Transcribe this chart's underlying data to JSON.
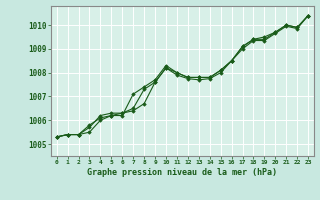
{
  "background_color": "#c8e8e0",
  "plot_bg_color": "#d8f0e8",
  "grid_color": "#ffffff",
  "line_color": "#1a5c1a",
  "ylim": [
    1004.5,
    1010.8
  ],
  "xlim": [
    -0.5,
    23.5
  ],
  "yticks": [
    1005,
    1006,
    1007,
    1008,
    1009,
    1010
  ],
  "xticks": [
    0,
    1,
    2,
    3,
    4,
    5,
    6,
    7,
    8,
    9,
    10,
    11,
    12,
    13,
    14,
    15,
    16,
    17,
    18,
    19,
    20,
    21,
    22,
    23
  ],
  "xlabel": "Graphe pression niveau de la mer (hPa)",
  "series1": [
    1005.3,
    1005.4,
    1005.4,
    1005.8,
    1006.1,
    1006.2,
    1006.2,
    1007.1,
    1007.4,
    1007.7,
    1008.3,
    1008.0,
    1007.8,
    1007.8,
    1007.8,
    1008.1,
    1008.5,
    1009.1,
    1009.4,
    1009.4,
    1009.7,
    1010.0,
    1009.9,
    1010.4
  ],
  "series2": [
    1005.3,
    1005.4,
    1005.4,
    1005.5,
    1006.0,
    1006.2,
    1006.3,
    1006.4,
    1006.7,
    1007.6,
    1008.2,
    1007.9,
    1007.75,
    1007.7,
    1007.75,
    1008.0,
    1008.5,
    1009.0,
    1009.35,
    1009.35,
    1009.65,
    1009.95,
    1009.85,
    1010.4
  ],
  "series3": [
    1005.3,
    1005.4,
    1005.4,
    1005.7,
    1006.2,
    1006.3,
    1006.3,
    1006.5,
    1007.3,
    1007.6,
    1008.2,
    1008.0,
    1007.8,
    1007.8,
    1007.8,
    1008.1,
    1008.5,
    1009.1,
    1009.4,
    1009.5,
    1009.7,
    1010.0,
    1009.9,
    1010.4
  ],
  "figsize": [
    3.2,
    2.0
  ],
  "dpi": 100
}
